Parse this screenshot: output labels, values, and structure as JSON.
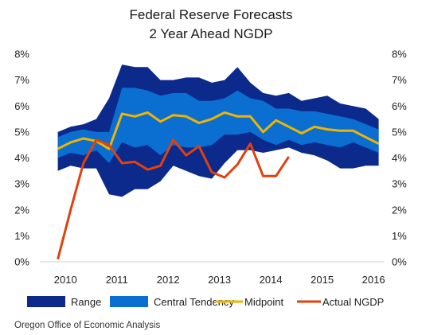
{
  "chart_data": {
    "type": "area",
    "title": "Federal Reserve Forecasts",
    "subtitle": "2 Year Ahead NGDP",
    "xlabel": "",
    "ylabel": "",
    "xlim": [
      2009.5,
      2016.2
    ],
    "ylim": [
      0,
      8
    ],
    "x_ticks": [
      "2010",
      "2011",
      "2012",
      "2013",
      "2014",
      "2015",
      "2016"
    ],
    "x_tick_values": [
      2010,
      2011,
      2012,
      2013,
      2014,
      2015,
      2016
    ],
    "y_ticks": [
      "0%",
      "1%",
      "2%",
      "3%",
      "4%",
      "5%",
      "6%",
      "7%",
      "8%"
    ],
    "y_tick_values": [
      0,
      1,
      2,
      3,
      4,
      5,
      6,
      7,
      8
    ],
    "legend_position": "bottom",
    "source": "Oregon Office of Economic Analysis",
    "series": [
      {
        "name": "Range",
        "color": "#0b2a8c",
        "x": [
          2009.85,
          2010.1,
          2010.35,
          2010.6,
          2010.85,
          2011.1,
          2011.35,
          2011.6,
          2011.85,
          2012.1,
          2012.35,
          2012.6,
          2012.85,
          2013.1,
          2013.35,
          2013.6,
          2013.85,
          2014.1,
          2014.35,
          2014.6,
          2014.85,
          2015.1,
          2015.35,
          2015.6,
          2015.85,
          2016.1
        ],
        "high": [
          5.0,
          5.2,
          5.3,
          5.5,
          6.3,
          7.6,
          7.5,
          7.5,
          7.0,
          7.0,
          7.1,
          7.1,
          6.9,
          7.0,
          7.5,
          6.9,
          6.5,
          6.4,
          6.5,
          6.2,
          6.3,
          6.4,
          6.1,
          6.0,
          5.9,
          5.5
        ],
        "low": [
          3.5,
          3.7,
          3.6,
          3.6,
          2.6,
          2.5,
          2.8,
          2.8,
          3.1,
          3.7,
          3.5,
          3.3,
          3.2,
          3.8,
          4.3,
          4.3,
          4.2,
          4.3,
          4.4,
          4.2,
          4.1,
          3.9,
          3.6,
          3.6,
          3.7,
          3.7
        ]
      },
      {
        "name": "Central Tendency",
        "color": "#0a6fd1",
        "x": [
          2009.85,
          2010.1,
          2010.35,
          2010.6,
          2010.85,
          2011.1,
          2011.35,
          2011.6,
          2011.85,
          2012.1,
          2012.35,
          2012.6,
          2012.85,
          2013.1,
          2013.35,
          2013.6,
          2013.85,
          2014.1,
          2014.35,
          2014.6,
          2014.85,
          2015.1,
          2015.35,
          2015.6,
          2015.85,
          2016.1
        ],
        "high": [
          4.8,
          5.0,
          5.1,
          5.0,
          5.0,
          6.7,
          6.7,
          6.6,
          6.4,
          6.5,
          6.5,
          6.2,
          6.2,
          6.3,
          6.6,
          6.3,
          6.2,
          5.9,
          5.9,
          5.8,
          5.8,
          5.7,
          5.6,
          5.5,
          5.3,
          5.1
        ],
        "low": [
          4.0,
          4.2,
          4.1,
          4.3,
          3.8,
          4.6,
          4.4,
          4.5,
          4.1,
          4.5,
          4.4,
          4.4,
          4.5,
          4.9,
          4.9,
          5.0,
          4.7,
          4.5,
          4.7,
          4.5,
          4.6,
          4.5,
          4.4,
          4.6,
          4.4,
          4.2
        ]
      },
      {
        "name": "Midpoint",
        "color": "#f0b400",
        "x": [
          2009.85,
          2010.1,
          2010.35,
          2010.6,
          2010.85,
          2011.1,
          2011.35,
          2011.6,
          2011.85,
          2012.1,
          2012.35,
          2012.6,
          2012.85,
          2013.1,
          2013.35,
          2013.6,
          2013.85,
          2014.1,
          2014.35,
          2014.6,
          2014.85,
          2015.1,
          2015.35,
          2015.6,
          2015.85,
          2016.1
        ],
        "values": [
          4.35,
          4.6,
          4.75,
          4.65,
          4.35,
          5.7,
          5.6,
          5.75,
          5.4,
          5.65,
          5.6,
          5.35,
          5.5,
          5.75,
          5.6,
          5.6,
          5.0,
          5.45,
          5.2,
          4.95,
          5.2,
          5.1,
          5.05,
          5.05,
          4.8,
          4.55
        ]
      },
      {
        "name": "Actual NGDP",
        "color": "#e2400e",
        "x": [
          2009.85,
          2010.1,
          2010.35,
          2010.6,
          2010.85,
          2011.1,
          2011.35,
          2011.6,
          2011.85,
          2012.1,
          2012.35,
          2012.6,
          2012.85,
          2013.1,
          2013.35,
          2013.6,
          2013.85,
          2014.1,
          2014.35
        ],
        "values": [
          0.1,
          2.0,
          3.8,
          4.7,
          4.5,
          3.8,
          3.85,
          3.55,
          3.7,
          4.7,
          4.1,
          4.45,
          3.45,
          3.25,
          3.75,
          4.55,
          3.3,
          3.3,
          4.05
        ]
      }
    ]
  }
}
